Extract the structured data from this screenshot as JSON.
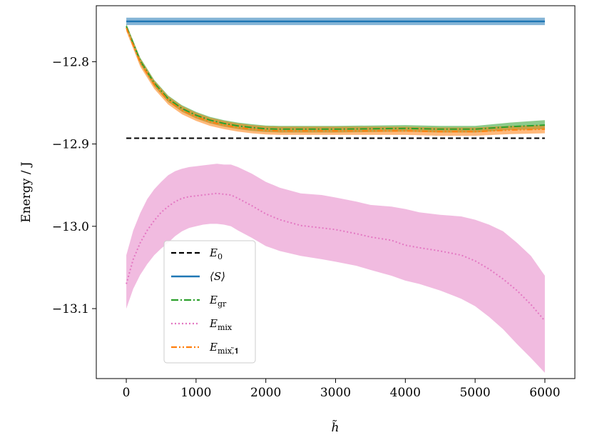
{
  "chart_data": {
    "type": "line",
    "title": "",
    "xlabel": "h̃",
    "ylabel": "Energy / J",
    "xlim": [
      -430,
      6430
    ],
    "ylim": [
      -13.185,
      -12.732
    ],
    "xticks": [
      {
        "v": 0,
        "label": "0"
      },
      {
        "v": 1000,
        "label": "1000"
      },
      {
        "v": 2000,
        "label": "2000"
      },
      {
        "v": 3000,
        "label": "3000"
      },
      {
        "v": 4000,
        "label": "4000"
      },
      {
        "v": 5000,
        "label": "5000"
      },
      {
        "v": 6000,
        "label": "6000"
      }
    ],
    "yticks": [
      {
        "v": -12.8,
        "label": "−12.8"
      },
      {
        "v": -12.9,
        "label": "−12.9"
      },
      {
        "v": -13.0,
        "label": "−13.0"
      },
      {
        "v": -13.1,
        "label": "−13.1"
      }
    ],
    "grid": false,
    "legend_position": "lower-left",
    "series": [
      {
        "name": "E0",
        "label_main": "E",
        "label_sub": "0",
        "color": "#000000",
        "style": "dashed",
        "x": [
          0,
          6000
        ],
        "y": [
          -12.893,
          -12.893
        ]
      },
      {
        "name": "<S>",
        "label_main": "⟨S⟩",
        "label_sub": "",
        "color": "#1f77b4",
        "style": "solid",
        "x": [
          0,
          6000
        ],
        "y": [
          -12.751,
          -12.751
        ],
        "band": {
          "x": [
            0,
            6000
          ],
          "lo": [
            -12.7555,
            -12.7555
          ],
          "hi": [
            -12.7465,
            -12.7465
          ]
        }
      },
      {
        "name": "E_gr",
        "label_main": "E",
        "label_sub": "gr",
        "color": "#2ca02c",
        "style": "dashdot",
        "x": [
          0,
          200,
          400,
          600,
          800,
          1000,
          1200,
          1400,
          1600,
          1800,
          2000,
          2200,
          2500,
          3000,
          3500,
          4000,
          4500,
          5000,
          5500,
          6000
        ],
        "y": [
          -12.757,
          -12.799,
          -12.826,
          -12.845,
          -12.857,
          -12.865,
          -12.871,
          -12.875,
          -12.878,
          -12.88,
          -12.8815,
          -12.882,
          -12.882,
          -12.882,
          -12.8815,
          -12.881,
          -12.882,
          -12.882,
          -12.879,
          -12.877
        ],
        "band": {
          "x": [
            0,
            200,
            400,
            600,
            800,
            1000,
            1200,
            1400,
            1600,
            1800,
            2000,
            2200,
            2500,
            3000,
            3500,
            4000,
            4500,
            5000,
            5500,
            6000
          ],
          "lo": [
            -12.76,
            -12.803,
            -12.83,
            -12.849,
            -12.861,
            -12.869,
            -12.875,
            -12.879,
            -12.882,
            -12.884,
            -12.8855,
            -12.886,
            -12.886,
            -12.886,
            -12.8855,
            -12.885,
            -12.886,
            -12.886,
            -12.883,
            -12.882
          ],
          "hi": [
            -12.754,
            -12.795,
            -12.822,
            -12.841,
            -12.853,
            -12.861,
            -12.867,
            -12.871,
            -12.874,
            -12.876,
            -12.8775,
            -12.878,
            -12.878,
            -12.878,
            -12.8775,
            -12.877,
            -12.878,
            -12.878,
            -12.874,
            -12.871
          ]
        }
      },
      {
        "name": "E_mix",
        "label_main": "E",
        "label_sub": "mix",
        "color": "#e377c2",
        "style": "dotted",
        "x": [
          0,
          100,
          200,
          300,
          400,
          500,
          600,
          700,
          800,
          900,
          1000,
          1100,
          1200,
          1300,
          1400,
          1500,
          1600,
          1800,
          2000,
          2200,
          2500,
          2800,
          3000,
          3300,
          3500,
          3800,
          4000,
          4200,
          4500,
          4800,
          5000,
          5200,
          5400,
          5600,
          5800,
          6000
        ],
        "y": [
          -13.07,
          -13.04,
          -13.02,
          -13.005,
          -12.993,
          -12.983,
          -12.976,
          -12.97,
          -12.966,
          -12.964,
          -12.963,
          -12.962,
          -12.961,
          -12.96,
          -12.961,
          -12.962,
          -12.966,
          -12.975,
          -12.985,
          -12.992,
          -12.999,
          -13.002,
          -13.004,
          -13.009,
          -13.013,
          -13.017,
          -13.023,
          -13.026,
          -13.03,
          -13.035,
          -13.042,
          -13.052,
          -13.064,
          -13.078,
          -13.095,
          -13.115
        ],
        "band": {
          "x": [
            0,
            100,
            200,
            300,
            400,
            500,
            600,
            700,
            800,
            900,
            1000,
            1100,
            1200,
            1300,
            1400,
            1500,
            1600,
            1800,
            2000,
            2200,
            2500,
            2800,
            3000,
            3300,
            3500,
            3800,
            4000,
            4200,
            4500,
            4800,
            5000,
            5200,
            5400,
            5600,
            5800,
            6000
          ],
          "lo": [
            -13.1,
            -13.076,
            -13.059,
            -13.046,
            -13.035,
            -13.027,
            -13.02,
            -13.012,
            -13.006,
            -13.002,
            -13.0,
            -12.998,
            -12.997,
            -12.997,
            -12.998,
            -13.0,
            -13.005,
            -13.014,
            -13.024,
            -13.03,
            -13.036,
            -13.04,
            -13.043,
            -13.048,
            -13.053,
            -13.06,
            -13.066,
            -13.07,
            -13.078,
            -13.088,
            -13.097,
            -13.11,
            -13.125,
            -13.143,
            -13.16,
            -13.178
          ],
          "hi": [
            -13.035,
            -13.005,
            -12.984,
            -12.967,
            -12.955,
            -12.946,
            -12.938,
            -12.933,
            -12.93,
            -12.928,
            -12.927,
            -12.926,
            -12.925,
            -12.924,
            -12.925,
            -12.925,
            -12.928,
            -12.936,
            -12.946,
            -12.953,
            -12.96,
            -12.962,
            -12.965,
            -12.97,
            -12.974,
            -12.976,
            -12.979,
            -12.983,
            -12.986,
            -12.988,
            -12.992,
            -12.998,
            -13.006,
            -13.02,
            -13.036,
            -13.06
          ]
        }
      },
      {
        "name": "E_mix,1",
        "label_main": "E",
        "label_sub": "mix,̃𝟏",
        "color": "#ff7f0e",
        "style": "dashdotdot",
        "x": [
          0,
          200,
          400,
          600,
          800,
          1000,
          1200,
          1400,
          1600,
          1800,
          2000,
          2200,
          2500,
          3000,
          3500,
          4000,
          4500,
          5000,
          5500,
          6000
        ],
        "y": [
          -12.759,
          -12.801,
          -12.828,
          -12.847,
          -12.859,
          -12.867,
          -12.873,
          -12.877,
          -12.88,
          -12.882,
          -12.8835,
          -12.884,
          -12.884,
          -12.884,
          -12.884,
          -12.884,
          -12.885,
          -12.885,
          -12.883,
          -12.882
        ],
        "band": {
          "x": [
            0,
            200,
            400,
            600,
            800,
            1000,
            1200,
            1400,
            1600,
            1800,
            2000,
            2200,
            2500,
            3000,
            3500,
            4000,
            4500,
            5000,
            5500,
            6000
          ],
          "lo": [
            -12.763,
            -12.806,
            -12.833,
            -12.852,
            -12.864,
            -12.872,
            -12.878,
            -12.882,
            -12.885,
            -12.887,
            -12.8885,
            -12.889,
            -12.889,
            -12.889,
            -12.889,
            -12.889,
            -12.89,
            -12.89,
            -12.888,
            -12.887
          ],
          "hi": [
            -12.755,
            -12.796,
            -12.823,
            -12.842,
            -12.854,
            -12.862,
            -12.868,
            -12.872,
            -12.875,
            -12.877,
            -12.8785,
            -12.879,
            -12.879,
            -12.879,
            -12.879,
            -12.879,
            -12.88,
            -12.88,
            -12.878,
            -12.877
          ]
        }
      }
    ]
  }
}
